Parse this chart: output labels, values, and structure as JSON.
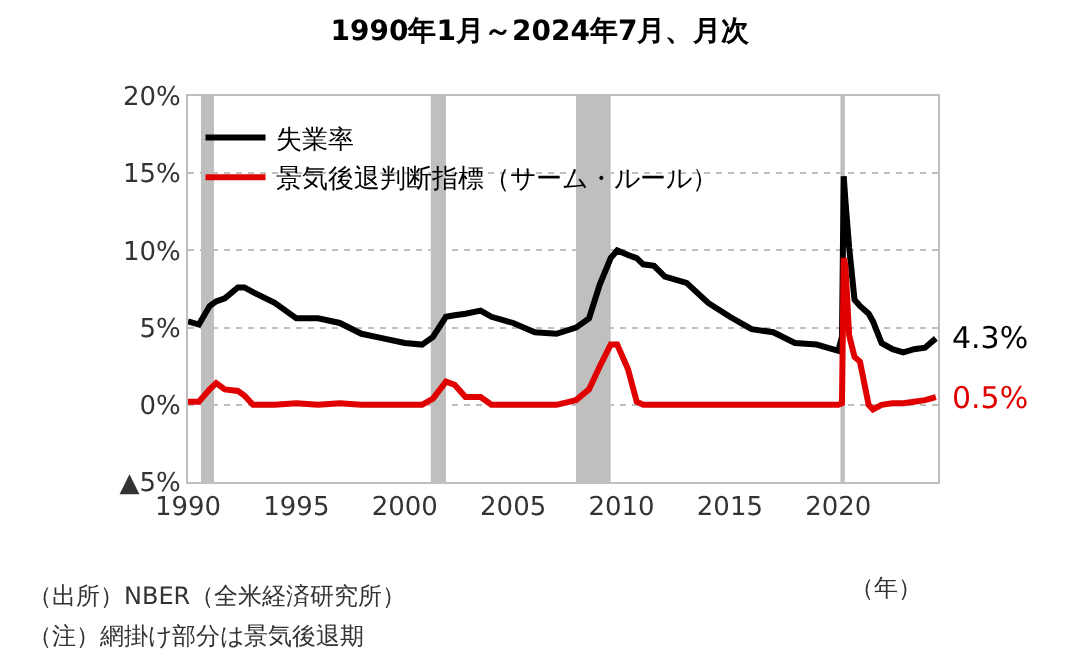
{
  "chart_data": {
    "type": "line",
    "title": "1990年1月～2024年7月、月次",
    "xlabel": "（年）",
    "x": [
      1990.0,
      1990.5,
      1991.0,
      1991.3,
      1991.7,
      1992.3,
      1992.6,
      1993.0,
      1994.0,
      1995.0,
      1996.0,
      1997.0,
      1998.0,
      1999.0,
      2000.0,
      2000.8,
      2001.3,
      2001.9,
      2002.3,
      2002.8,
      2003.5,
      2004.0,
      2005.0,
      2006.0,
      2007.0,
      2007.9,
      2008.5,
      2009.0,
      2009.5,
      2009.8,
      2010.3,
      2010.7,
      2011.0,
      2011.5,
      2012.0,
      2013.0,
      2014.0,
      2015.0,
      2016.0,
      2017.0,
      2018.0,
      2019.0,
      2020.0,
      2020.17,
      2020.25,
      2020.33,
      2020.5,
      2020.75,
      2021.0,
      2021.4,
      2021.6,
      2022.0,
      2022.5,
      2023.0,
      2023.5,
      2024.0,
      2024.5
    ],
    "series": [
      {
        "name": "失業率",
        "color": "#000000",
        "values": [
          5.4,
          5.2,
          6.4,
          6.7,
          6.9,
          7.6,
          7.6,
          7.3,
          6.6,
          5.6,
          5.6,
          5.3,
          4.6,
          4.3,
          4.0,
          3.9,
          4.4,
          5.7,
          5.8,
          5.9,
          6.1,
          5.7,
          5.3,
          4.7,
          4.6,
          5.0,
          5.6,
          7.8,
          9.5,
          10.0,
          9.7,
          9.5,
          9.1,
          9.0,
          8.3,
          7.9,
          6.6,
          5.7,
          4.9,
          4.7,
          4.0,
          3.9,
          3.5,
          4.4,
          14.8,
          13.2,
          10.2,
          6.8,
          6.4,
          5.9,
          5.4,
          4.0,
          3.6,
          3.4,
          3.6,
          3.7,
          4.3
        ]
      },
      {
        "name": "景気後退判断指標（サーム・ルール）",
        "color": "#e00000",
        "values": [
          0.2,
          0.2,
          1.0,
          1.4,
          1.0,
          0.9,
          0.6,
          0.0,
          0.0,
          0.1,
          0.0,
          0.1,
          0.0,
          0.0,
          0.0,
          0.0,
          0.4,
          1.5,
          1.3,
          0.5,
          0.5,
          0.0,
          0.0,
          0.0,
          0.0,
          0.3,
          1.0,
          2.5,
          3.9,
          3.9,
          2.3,
          0.2,
          0.0,
          0.0,
          0.0,
          0.0,
          0.0,
          0.0,
          0.0,
          0.0,
          0.0,
          0.0,
          0.0,
          0.1,
          9.5,
          9.0,
          4.5,
          3.1,
          2.8,
          0.0,
          -0.3,
          0.0,
          0.1,
          0.1,
          0.2,
          0.3,
          0.5
        ]
      }
    ],
    "xlim": [
      1990,
      2024.6
    ],
    "xticks": [
      1990,
      1995,
      2000,
      2005,
      2010,
      2015,
      2020
    ],
    "ylim": [
      -5,
      20
    ],
    "yticks": [
      {
        "value": -5,
        "label": "▲5%"
      },
      {
        "value": 0,
        "label": "0%"
      },
      {
        "value": 5,
        "label": "5%"
      },
      {
        "value": 10,
        "label": "10%"
      },
      {
        "value": 15,
        "label": "15%"
      },
      {
        "value": 20,
        "label": "20%"
      }
    ],
    "bands": [
      {
        "axis": "x",
        "from": 1990.6,
        "to": 1991.2,
        "color": "#bfbfbf"
      },
      {
        "axis": "x",
        "from": 2001.2,
        "to": 2001.9,
        "color": "#bfbfbf"
      },
      {
        "axis": "x",
        "from": 2007.9,
        "to": 2009.5,
        "color": "#bfbfbf"
      },
      {
        "axis": "x",
        "from": 2020.1,
        "to": 2020.3,
        "color": "#bfbfbf"
      }
    ],
    "annotations": [
      {
        "text": "4.3%",
        "x": 2024.5,
        "y": 4.3
      },
      {
        "text": "0.5%",
        "x": 2024.5,
        "y": 0.5
      },
      "（出所）NBER（全米経済研究所）",
      "（注）網掛け部分は景気後退期"
    ],
    "grid": "y",
    "legend": "top left",
    "marker": "none",
    "line_style": "solid"
  }
}
